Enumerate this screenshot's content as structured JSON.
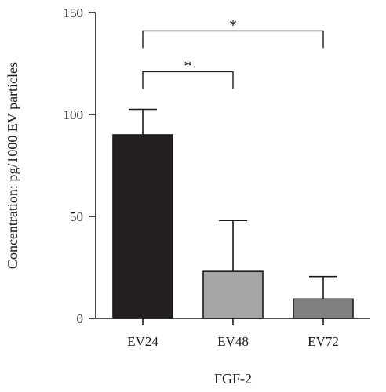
{
  "chart_data": {
    "type": "bar",
    "categories": [
      "EV24",
      "EV48",
      "EV72"
    ],
    "values": [
      90,
      23,
      9.5
    ],
    "errors": [
      12.5,
      25,
      11
    ],
    "colors": [
      "#231f20",
      "#a6a6a6",
      "#7f8082"
    ],
    "xlabel": "FGF-2",
    "ylabel": "Concentration: pg/1000 EV particles",
    "ylim": [
      0,
      150
    ],
    "yticks": [
      "0",
      "50",
      "100",
      "150"
    ],
    "grid": false,
    "significance": [
      {
        "from": "EV24",
        "to": "EV48",
        "label": "*",
        "level": 121
      },
      {
        "from": "EV24",
        "to": "EV72",
        "label": "*",
        "level": 141
      }
    ]
  }
}
